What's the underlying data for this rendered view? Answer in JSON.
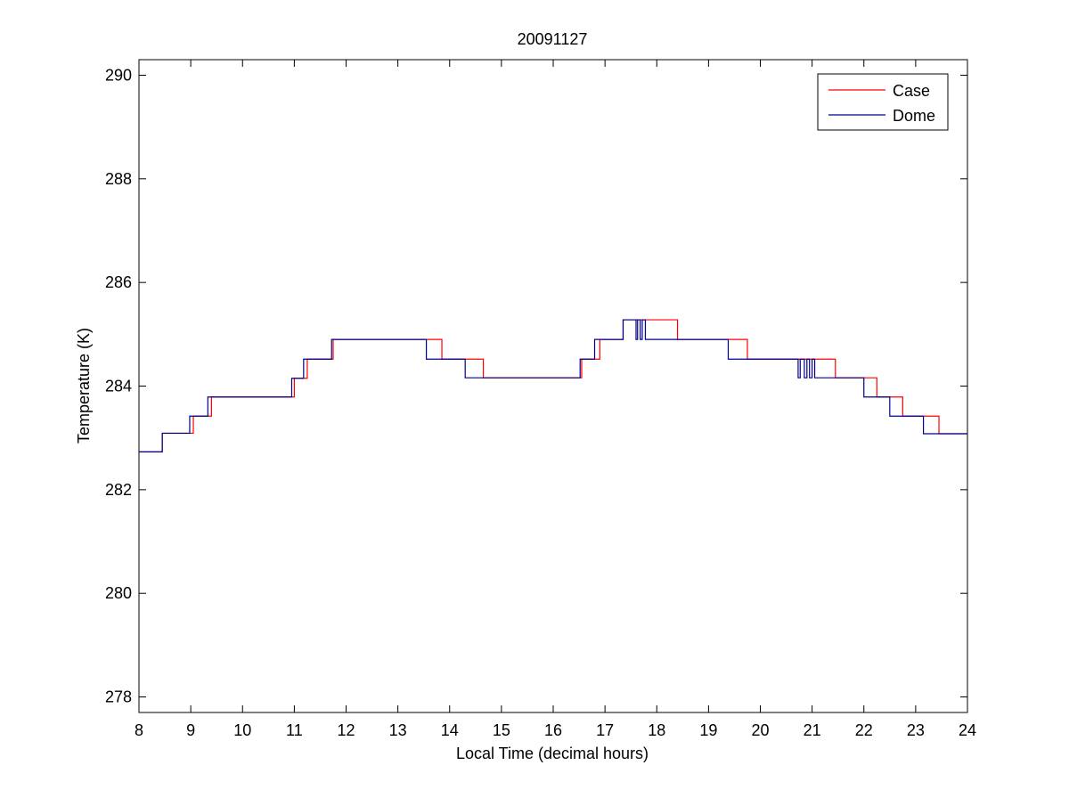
{
  "chart_data": {
    "type": "line",
    "title": "20091127",
    "xlabel": "Local Time (decimal hours)",
    "ylabel": "Temperature (K)",
    "xlim": [
      8,
      24
    ],
    "ylim": [
      277.7,
      290.3
    ],
    "xticks": [
      8,
      9,
      10,
      11,
      12,
      13,
      14,
      15,
      16,
      17,
      18,
      19,
      20,
      21,
      22,
      23,
      24
    ],
    "yticks": [
      278,
      280,
      282,
      284,
      286,
      288,
      290
    ],
    "grid": false,
    "legend_position": "top-right",
    "series": [
      {
        "name": "Case",
        "color": "#ff0000",
        "x": [
          8.0,
          8.45,
          8.45,
          9.05,
          9.05,
          9.4,
          9.4,
          11.0,
          11.0,
          11.25,
          11.25,
          11.75,
          11.75,
          13.85,
          13.85,
          14.65,
          14.65,
          16.55,
          16.55,
          16.9,
          16.9,
          17.35,
          17.35,
          18.4,
          18.4,
          19.75,
          19.75,
          21.45,
          21.45,
          22.25,
          22.25,
          22.75,
          22.75,
          23.45,
          23.45,
          24.0
        ],
        "y": [
          282.73,
          282.73,
          283.09,
          283.09,
          283.42,
          283.42,
          283.79,
          283.79,
          284.15,
          284.15,
          284.52,
          284.52,
          284.9,
          284.9,
          284.52,
          284.52,
          284.16,
          284.16,
          284.52,
          284.52,
          284.9,
          284.9,
          285.28,
          285.28,
          284.9,
          284.9,
          284.52,
          284.52,
          284.16,
          284.16,
          283.79,
          283.79,
          283.42,
          283.42,
          283.08,
          283.08
        ]
      },
      {
        "name": "Dome",
        "color": "#00008b",
        "x": [
          8.0,
          8.45,
          8.45,
          8.98,
          8.98,
          9.33,
          9.33,
          10.95,
          10.95,
          11.18,
          11.18,
          11.72,
          11.72,
          13.55,
          13.55,
          14.3,
          14.3,
          16.52,
          16.52,
          16.8,
          16.8,
          17.35,
          17.35,
          17.6,
          17.6,
          17.63,
          17.63,
          17.68,
          17.68,
          17.72,
          17.72,
          17.78,
          17.78,
          19.38,
          19.38,
          20.73,
          20.73,
          20.77,
          20.77,
          20.85,
          20.85,
          20.9,
          20.9,
          20.95,
          20.95,
          21.0,
          21.0,
          21.05,
          21.05,
          22.0,
          22.0,
          22.5,
          22.5,
          23.15,
          23.15,
          24.0
        ],
        "y": [
          282.73,
          282.73,
          283.09,
          283.09,
          283.42,
          283.42,
          283.79,
          283.79,
          284.15,
          284.15,
          284.52,
          284.52,
          284.9,
          284.9,
          284.52,
          284.52,
          284.16,
          284.16,
          284.52,
          284.52,
          284.9,
          284.9,
          285.28,
          285.28,
          284.9,
          284.9,
          285.28,
          285.28,
          284.9,
          284.9,
          285.28,
          285.28,
          284.9,
          284.9,
          284.52,
          284.52,
          284.16,
          284.16,
          284.52,
          284.52,
          284.16,
          284.16,
          284.52,
          284.52,
          284.16,
          284.16,
          284.52,
          284.52,
          284.16,
          284.16,
          283.79,
          283.79,
          283.42,
          283.42,
          283.08,
          283.08
        ]
      }
    ]
  }
}
